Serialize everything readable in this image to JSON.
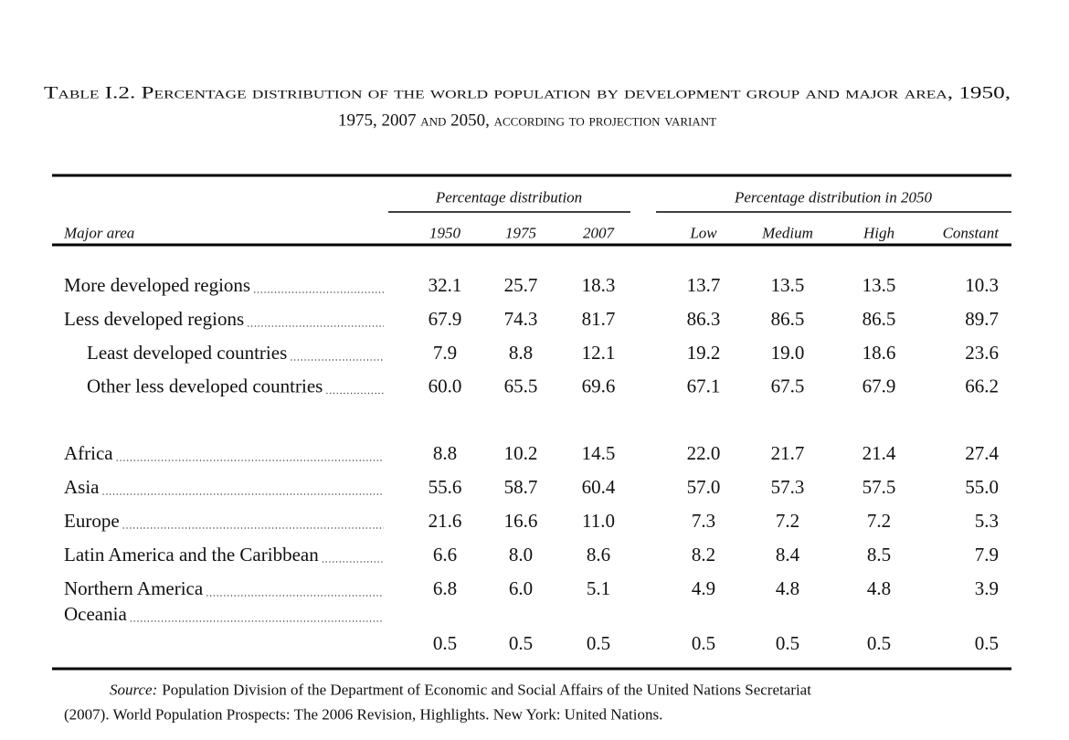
{
  "title": [
    "Table I.2. Percentage distribution of the world population by development group and major area, 1950,",
    "1975, 2007 and 2050, according to projection variant"
  ],
  "table": {
    "stub_header": "Major area",
    "column_groups": [
      {
        "label": "Percentage distribution",
        "columns": [
          "1950",
          "1975",
          "2007"
        ]
      },
      {
        "label": "Percentage distribution in 2050",
        "columns": [
          "Low",
          "Medium",
          "High",
          "Constant"
        ]
      }
    ],
    "sections": [
      {
        "rows": [
          {
            "label": "More developed regions",
            "values": [
              "32.1",
              "25.7",
              "18.3",
              "13.7",
              "13.5",
              "13.5",
              "10.3"
            ]
          },
          {
            "label": "Less developed regions",
            "values": [
              "67.9",
              "74.3",
              "81.7",
              "86.3",
              "86.5",
              "86.5",
              "89.7"
            ],
            "subrows": [
              {
                "label": "Least developed countries",
                "values": [
                  "7.9",
                  "8.8",
                  "12.1",
                  "19.2",
                  "19.0",
                  "18.6",
                  "23.6"
                ]
              },
              {
                "label": "Other less developed countries",
                "values": [
                  "60.0",
                  "65.5",
                  "69.6",
                  "67.1",
                  "67.5",
                  "67.9",
                  "66.2"
                ]
              }
            ]
          }
        ]
      },
      {
        "rows": [
          {
            "label": "Africa",
            "values": [
              "8.8",
              "10.2",
              "14.5",
              "22.0",
              "21.7",
              "21.4",
              "27.4"
            ]
          },
          {
            "label": "Asia",
            "values": [
              "55.6",
              "58.7",
              "60.4",
              "57.0",
              "57.3",
              "57.5",
              "55.0"
            ]
          },
          {
            "label": "Europe",
            "values": [
              "21.6",
              "16.6",
              "11.0",
              "7.3",
              "7.2",
              "7.2",
              "5.3"
            ]
          },
          {
            "label": "Latin America and the Caribbean",
            "values": [
              "6.6",
              "8.0",
              "8.6",
              "8.2",
              "8.4",
              "8.5",
              "7.9"
            ]
          },
          {
            "label": "Northern America",
            "values": [
              "6.8",
              "6.0",
              "5.1",
              "4.9",
              "4.8",
              "4.8",
              "3.9"
            ]
          },
          {
            "label": "Oceania",
            "values": [
              "0.5",
              "0.5",
              "0.5",
              "0.5",
              "0.5",
              "0.5",
              "0.5"
            ]
          }
        ]
      }
    ]
  },
  "source": {
    "label": "Source:",
    "lines": [
      "Population Division of the Department of Economic and Social Affairs of the United Nations Secretariat",
      "(2007). World Population Prospects: The 2006 Revision, Highlights. New York: United Nations."
    ]
  }
}
